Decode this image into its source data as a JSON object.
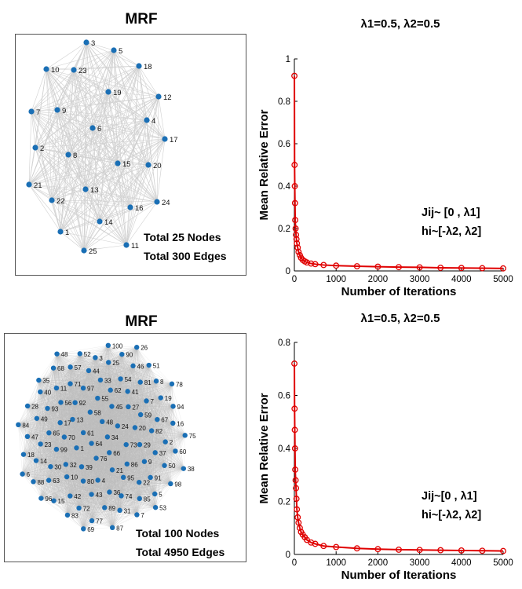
{
  "networks": [
    {
      "title": "MRF",
      "total_nodes": "Total 25 Nodes",
      "total_edges": "Total 300 Edges",
      "node_labels": [
        "1",
        "2",
        "3",
        "4",
        "5",
        "6",
        "7",
        "8",
        "9",
        "10",
        "11",
        "12",
        "13",
        "14",
        "15",
        "16",
        "17",
        "18",
        "19",
        "20",
        "21",
        "22",
        "23",
        "24",
        "25"
      ],
      "node_color": "#1a6fb5",
      "edge_color": "#d0d0d0"
    },
    {
      "title": "MRF",
      "total_nodes": "Total 100 Nodes",
      "total_edges": "Total 4950 Edges",
      "node_labels": [
        "34",
        "64",
        "48",
        "66",
        "61",
        "24",
        "76",
        "58",
        "73",
        "1",
        "45",
        "21",
        "13",
        "20",
        "39",
        "55",
        "86",
        "70",
        "27",
        "4",
        "92",
        "29",
        "32",
        "62",
        "95",
        "17",
        "59",
        "80",
        "97",
        "9",
        "99",
        "41",
        "36",
        "56",
        "82",
        "10",
        "33",
        "22",
        "65",
        "7",
        "43",
        "71",
        "37",
        "30",
        "54",
        "74",
        "93",
        "67",
        "42",
        "44",
        "91",
        "23",
        "81",
        "89",
        "11",
        "2",
        "63",
        "25",
        "85",
        "49",
        "19",
        "72",
        "57",
        "50",
        "14",
        "46",
        "31",
        "40",
        "16",
        "15",
        "3",
        "5",
        "47",
        "8",
        "77",
        "68",
        "60",
        "88",
        "90",
        "7",
        "28",
        "94",
        "83",
        "52",
        "98",
        "18",
        "51",
        "87",
        "35",
        "75",
        "96",
        "100",
        "53",
        "84",
        "78",
        "69",
        "48",
        "38",
        "6",
        "26"
      ],
      "node_color": "#1a6fb5",
      "edge_color": "#bdbdbd"
    }
  ],
  "chart_data": [
    {
      "type": "line",
      "title": "λ1=0.5, λ2=0.5",
      "xlabel": "Number of Iterations",
      "ylabel": "Mean Relative Error",
      "xlim": [
        0,
        5000
      ],
      "ylim": [
        0,
        1
      ],
      "x_ticks": [
        "0",
        "1000",
        "2000",
        "3000",
        "4000",
        "5000"
      ],
      "y_ticks": [
        "0",
        "0.2",
        "0.4",
        "0.6",
        "0.8",
        "1"
      ],
      "annotation_J": "Jij~ [0 , λ1]",
      "annotation_h": "hi~[-λ2, λ2]",
      "series": [
        {
          "color": "#e00000",
          "marker": "circle",
          "x": [
            1,
            5,
            10,
            15,
            20,
            30,
            40,
            50,
            60,
            80,
            100,
            130,
            160,
            200,
            250,
            300,
            400,
            500,
            700,
            1000,
            1500,
            2000,
            2500,
            3000,
            3500,
            4000,
            4500,
            5000
          ],
          "y": [
            0.92,
            0.5,
            0.4,
            0.32,
            0.24,
            0.2,
            0.17,
            0.15,
            0.13,
            0.11,
            0.09,
            0.075,
            0.062,
            0.052,
            0.045,
            0.04,
            0.035,
            0.032,
            0.028,
            0.025,
            0.022,
            0.02,
            0.018,
            0.017,
            0.015,
            0.014,
            0.013,
            0.012
          ]
        }
      ]
    },
    {
      "type": "line",
      "title": "λ1=0.5, λ2=0.5",
      "xlabel": "Number of Iterations",
      "ylabel": "Mean Relative Error",
      "xlim": [
        0,
        5000
      ],
      "ylim": [
        0,
        0.8
      ],
      "x_ticks": [
        "0",
        "1000",
        "2000",
        "3000",
        "4000",
        "5000"
      ],
      "y_ticks": [
        "0",
        "0.2",
        "0.4",
        "0.6",
        "0.8"
      ],
      "annotation_J": "Jij~[0 , λ1]",
      "annotation_h": "hi~[-λ2, λ2]",
      "series": [
        {
          "color": "#e00000",
          "marker": "circle",
          "x": [
            1,
            5,
            10,
            15,
            20,
            30,
            40,
            50,
            60,
            80,
            100,
            130,
            160,
            200,
            250,
            300,
            400,
            500,
            700,
            1000,
            1500,
            2000,
            2500,
            3000,
            3500,
            4000,
            4500,
            5000
          ],
          "y": [
            0.72,
            0.55,
            0.47,
            0.4,
            0.32,
            0.28,
            0.25,
            0.21,
            0.17,
            0.14,
            0.12,
            0.1,
            0.085,
            0.075,
            0.065,
            0.055,
            0.045,
            0.04,
            0.032,
            0.028,
            0.023,
            0.02,
            0.018,
            0.017,
            0.016,
            0.015,
            0.014,
            0.013
          ]
        }
      ]
    }
  ]
}
